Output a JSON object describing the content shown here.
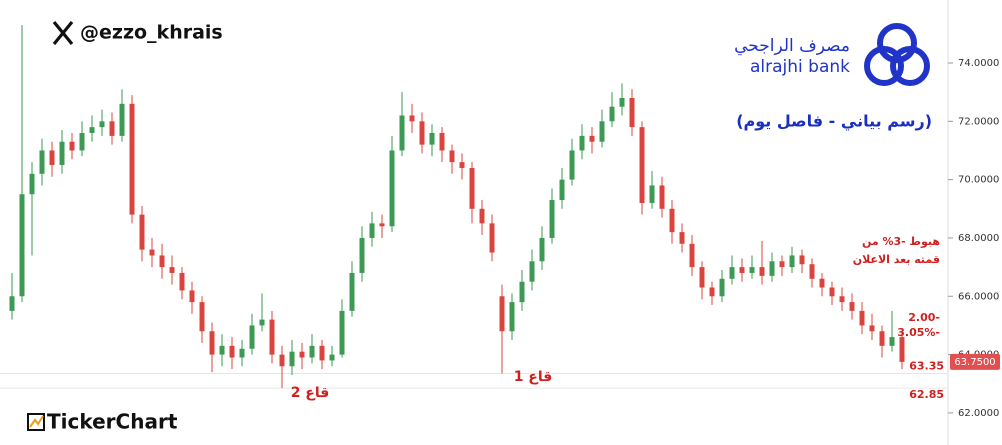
{
  "chart_data": {
    "type": "candlestick",
    "handle": "@ezzo_khrais",
    "bank_name_ar": "مصرف الراجحي",
    "bank_name_en": "alrajhi bank",
    "subtitle": "(رسم بياني - فاصل يوم)",
    "annotations": [
      "هبوط -3% من",
      "قمته بعد الاعلان",
      "2.00-",
      "3.05%-",
      "قاع 2",
      "قاع 1"
    ],
    "brand": "TickerChart",
    "up_color": "#3d9a55",
    "down_color": "#d9443f",
    "ylim": [
      60.9,
      76.16
    ],
    "yticks": [
      {
        "value": 62,
        "label": "62.0000"
      },
      {
        "value": 64,
        "label": "64.0000"
      },
      {
        "value": 66,
        "label": "66.0000"
      },
      {
        "value": 68,
        "label": "68.0000"
      },
      {
        "value": 70,
        "label": "70.0000"
      },
      {
        "value": 72,
        "label": "72.0000"
      },
      {
        "value": 74,
        "label": "74.0000"
      }
    ],
    "levels": [
      {
        "value": 63.35,
        "label": "63.35"
      },
      {
        "value": 62.85,
        "label": "62.85"
      }
    ],
    "last_price": {
      "value": 63.75,
      "label": "63.7500"
    },
    "ohlc": [
      [
        65.5,
        66.8,
        65.2,
        66.0
      ],
      [
        66.0,
        75.3,
        65.8,
        69.5
      ],
      [
        69.5,
        70.6,
        67.4,
        70.2
      ],
      [
        70.2,
        71.4,
        69.8,
        71.0
      ],
      [
        71.0,
        71.3,
        70.1,
        70.5
      ],
      [
        70.5,
        71.7,
        70.2,
        71.3
      ],
      [
        71.3,
        71.6,
        70.7,
        71.0
      ],
      [
        71.0,
        72.0,
        70.8,
        71.6
      ],
      [
        71.6,
        72.2,
        71.3,
        71.8
      ],
      [
        71.8,
        72.4,
        71.5,
        72.0
      ],
      [
        72.0,
        72.3,
        71.2,
        71.5
      ],
      [
        71.5,
        73.1,
        71.3,
        72.6
      ],
      [
        72.6,
        72.9,
        68.5,
        68.8
      ],
      [
        68.8,
        69.1,
        67.2,
        67.6
      ],
      [
        67.6,
        68.0,
        67.0,
        67.4
      ],
      [
        67.4,
        67.8,
        66.6,
        67.0
      ],
      [
        67.0,
        67.4,
        66.4,
        66.8
      ],
      [
        66.8,
        67.0,
        65.9,
        66.2
      ],
      [
        66.2,
        66.5,
        65.4,
        65.8
      ],
      [
        65.8,
        66.0,
        64.4,
        64.8
      ],
      [
        64.8,
        65.1,
        63.4,
        64.0
      ],
      [
        64.0,
        64.7,
        63.6,
        64.3
      ],
      [
        64.3,
        64.6,
        63.5,
        63.9
      ],
      [
        63.9,
        64.5,
        63.6,
        64.2
      ],
      [
        64.2,
        65.4,
        64.0,
        65.0
      ],
      [
        65.0,
        66.1,
        64.8,
        65.2
      ],
      [
        65.2,
        65.5,
        63.7,
        64.0
      ],
      [
        64.0,
        64.3,
        62.85,
        63.6
      ],
      [
        63.6,
        64.5,
        63.3,
        64.1
      ],
      [
        64.1,
        64.4,
        63.5,
        63.9
      ],
      [
        63.9,
        64.7,
        63.7,
        64.3
      ],
      [
        64.3,
        64.5,
        63.5,
        63.8
      ],
      [
        63.8,
        64.3,
        63.6,
        64.0
      ],
      [
        64.0,
        65.9,
        63.9,
        65.5
      ],
      [
        65.5,
        67.2,
        65.3,
        66.8
      ],
      [
        66.8,
        68.4,
        66.5,
        68.0
      ],
      [
        68.0,
        68.9,
        67.7,
        68.5
      ],
      [
        68.5,
        68.8,
        68.0,
        68.4
      ],
      [
        68.4,
        71.5,
        68.2,
        71.0
      ],
      [
        71.0,
        73.0,
        70.8,
        72.2
      ],
      [
        72.2,
        72.6,
        71.6,
        72.0
      ],
      [
        72.0,
        72.3,
        70.9,
        71.2
      ],
      [
        71.2,
        71.9,
        70.8,
        71.6
      ],
      [
        71.6,
        71.8,
        70.6,
        71.0
      ],
      [
        71.0,
        71.2,
        70.2,
        70.6
      ],
      [
        70.6,
        70.9,
        70.0,
        70.4
      ],
      [
        70.4,
        70.6,
        68.5,
        69.0
      ],
      [
        69.0,
        69.3,
        68.1,
        68.5
      ],
      [
        68.5,
        68.8,
        67.2,
        67.5
      ],
      [
        66.0,
        66.4,
        63.35,
        64.8
      ],
      [
        64.8,
        66.1,
        64.5,
        65.8
      ],
      [
        65.8,
        66.9,
        65.5,
        66.5
      ],
      [
        66.5,
        67.6,
        66.2,
        67.2
      ],
      [
        67.2,
        68.4,
        66.9,
        68.0
      ],
      [
        68.0,
        69.7,
        67.8,
        69.3
      ],
      [
        69.3,
        70.4,
        69.0,
        70.0
      ],
      [
        70.0,
        71.4,
        69.8,
        71.0
      ],
      [
        71.0,
        71.9,
        70.7,
        71.5
      ],
      [
        71.5,
        71.8,
        70.9,
        71.3
      ],
      [
        71.3,
        72.4,
        71.1,
        72.0
      ],
      [
        72.0,
        73.0,
        71.8,
        72.5
      ],
      [
        72.5,
        73.3,
        72.2,
        72.8
      ],
      [
        72.8,
        73.1,
        71.5,
        71.8
      ],
      [
        71.8,
        72.0,
        68.8,
        69.2
      ],
      [
        69.2,
        70.3,
        69.0,
        69.8
      ],
      [
        69.8,
        70.1,
        68.7,
        69.0
      ],
      [
        69.0,
        69.3,
        67.8,
        68.2
      ],
      [
        68.2,
        68.5,
        67.5,
        67.8
      ],
      [
        67.8,
        68.1,
        66.7,
        67.0
      ],
      [
        67.0,
        67.2,
        65.9,
        66.3
      ],
      [
        66.3,
        66.5,
        65.7,
        66.0
      ],
      [
        66.0,
        66.9,
        65.8,
        66.6
      ],
      [
        66.6,
        67.4,
        66.4,
        67.0
      ],
      [
        67.0,
        67.3,
        66.5,
        66.8
      ],
      [
        66.8,
        67.4,
        66.6,
        67.0
      ],
      [
        67.0,
        67.9,
        66.4,
        66.7
      ],
      [
        66.7,
        67.5,
        66.5,
        67.2
      ],
      [
        67.2,
        67.4,
        66.7,
        67.0
      ],
      [
        67.0,
        67.7,
        66.8,
        67.4
      ],
      [
        67.4,
        67.6,
        66.8,
        67.1
      ],
      [
        67.1,
        67.3,
        66.3,
        66.6
      ],
      [
        66.6,
        66.8,
        66.0,
        66.3
      ],
      [
        66.3,
        66.5,
        65.7,
        66.0
      ],
      [
        66.0,
        66.3,
        65.5,
        65.8
      ],
      [
        65.8,
        66.1,
        65.2,
        65.5
      ],
      [
        65.5,
        65.8,
        64.7,
        65.0
      ],
      [
        65.0,
        65.4,
        64.5,
        64.8
      ],
      [
        64.8,
        65.0,
        63.9,
        64.3
      ],
      [
        64.3,
        65.5,
        64.1,
        64.6
      ],
      [
        64.6,
        64.8,
        63.5,
        63.75
      ]
    ]
  }
}
